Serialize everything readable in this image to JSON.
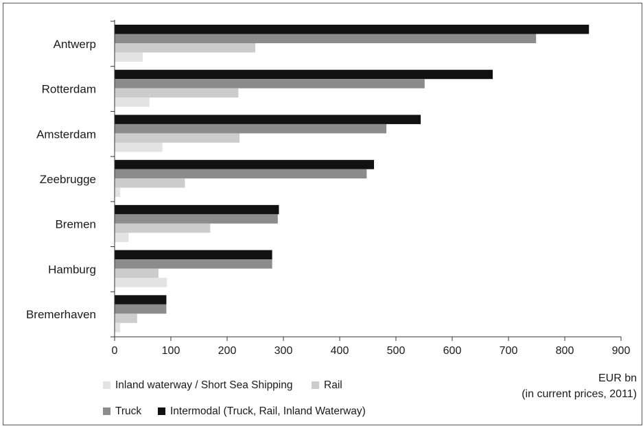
{
  "chart_data": {
    "type": "bar",
    "orientation": "horizontal",
    "categories": [
      "Antwerp",
      "Rotterdam",
      "Amsterdam",
      "Zeebrugge",
      "Bremen",
      "Hamburg",
      "Bremerhaven"
    ],
    "series": [
      {
        "name": "Intermodal (Truck, Rail, Inland Waterway)",
        "color": "#111111",
        "values": [
          843,
          672,
          544,
          461,
          292,
          280,
          92
        ]
      },
      {
        "name": "Truck",
        "color": "#8c8c8c",
        "values": [
          749,
          551,
          483,
          448,
          290,
          280,
          92
        ]
      },
      {
        "name": "Rail",
        "color": "#cccccc",
        "values": [
          250,
          220,
          222,
          125,
          170,
          78,
          40
        ]
      },
      {
        "name": "Inland waterway / Short Sea Shipping",
        "color": "#e3e3e3",
        "values": [
          50,
          62,
          85,
          10,
          25,
          93,
          10
        ]
      }
    ],
    "xlabel": "EUR bn",
    "xlabel_note": "(in current prices, 2011)",
    "xlim": [
      0,
      900
    ],
    "xticks": [
      "0",
      "100",
      "200",
      "300",
      "400",
      "500",
      "600",
      "700",
      "800",
      "900"
    ],
    "grid": false,
    "legend_position": "bottom"
  }
}
